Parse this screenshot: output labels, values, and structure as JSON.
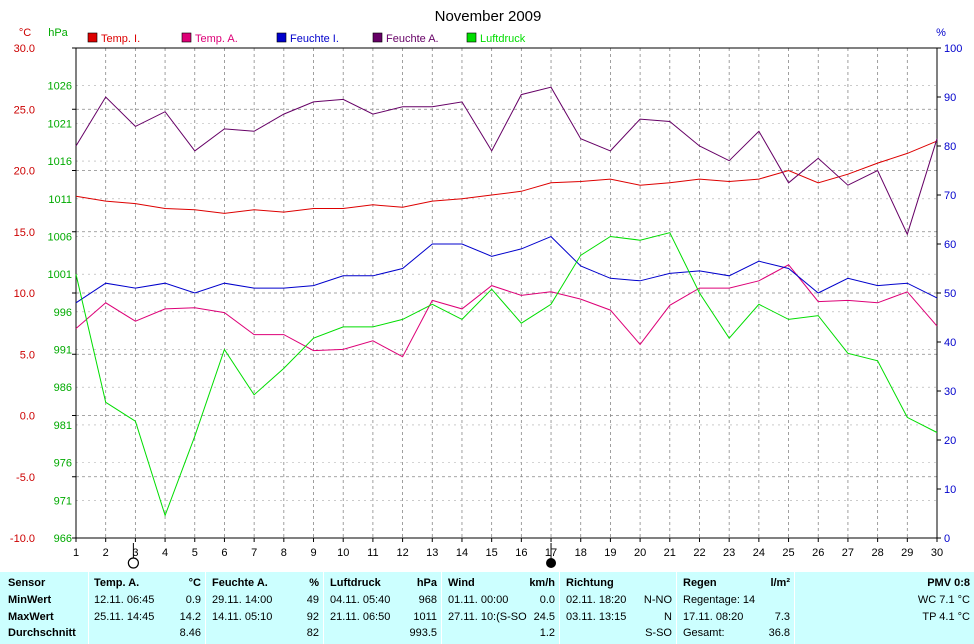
{
  "chart_data": {
    "type": "line",
    "title": "November 2009",
    "left_axis_unit": "°C",
    "pressure_axis_unit": "hPa",
    "right_axis_unit": "%",
    "x": [
      1,
      2,
      3,
      4,
      5,
      6,
      7,
      8,
      9,
      10,
      11,
      12,
      13,
      14,
      15,
      16,
      17,
      18,
      19,
      20,
      21,
      22,
      23,
      24,
      25,
      26,
      27,
      28,
      29,
      30
    ],
    "x_ticks": [
      "1",
      "2",
      "3",
      "4",
      "5",
      "6",
      "7",
      "8",
      "9",
      "10",
      "11",
      "12",
      "13",
      "14",
      "15",
      "16",
      "17",
      "18",
      "19",
      "20",
      "21",
      "22",
      "23",
      "24",
      "25",
      "26",
      "27",
      "28",
      "29",
      "30"
    ],
    "temp_axis": {
      "ylim": [
        -10,
        30
      ],
      "ticks": [
        "30.0",
        "25.0",
        "20.0",
        "15.0",
        "10.0",
        "5.0",
        "0.0",
        "-5.0",
        "-10.0"
      ]
    },
    "pressure_axis": {
      "ylim": [
        966,
        1031
      ],
      "ticks": [
        "1026",
        "1021",
        "1016",
        "1011",
        "1006",
        "1001",
        "996",
        "991",
        "986",
        "981",
        "976",
        "971",
        "966"
      ]
    },
    "humidity_axis": {
      "ylim": [
        0,
        100
      ],
      "ticks": [
        "100",
        "90",
        "80",
        "70",
        "60",
        "50",
        "40",
        "30",
        "20",
        "10",
        "0"
      ]
    },
    "series": [
      {
        "name": "Temp. I.",
        "axis": "temp",
        "color": "#dd0000",
        "values": [
          17.9,
          17.5,
          17.3,
          16.9,
          16.8,
          16.5,
          16.8,
          16.6,
          16.9,
          16.9,
          17.2,
          17.0,
          17.5,
          17.7,
          18.0,
          18.3,
          19.0,
          19.1,
          19.3,
          18.8,
          19.0,
          19.3,
          19.1,
          19.3,
          20.0,
          19.0,
          19.7,
          20.6,
          21.4,
          22.4
        ]
      },
      {
        "name": "Temp. A.",
        "axis": "temp",
        "color": "#dd0077",
        "values": [
          7.1,
          9.2,
          7.7,
          8.7,
          8.8,
          8.4,
          6.6,
          6.6,
          5.3,
          5.4,
          6.1,
          4.8,
          9.4,
          8.7,
          10.6,
          9.8,
          10.1,
          9.5,
          8.6,
          5.8,
          9.0,
          10.4,
          10.4,
          11.0,
          12.3,
          9.3,
          9.4,
          9.2,
          10.1,
          7.3
        ]
      },
      {
        "name": "Feuchte I.",
        "axis": "humidity",
        "color": "#0000cc",
        "values": [
          48,
          52,
          51,
          52,
          50,
          52,
          51,
          51,
          51.5,
          53.5,
          53.5,
          55,
          60,
          60,
          57.5,
          59,
          61.5,
          55.5,
          53,
          52.5,
          54,
          54.5,
          53.5,
          56.5,
          55,
          50,
          53,
          51.5,
          52,
          49
        ]
      },
      {
        "name": "Feuchte A.",
        "axis": "humidity",
        "color": "#660066",
        "values": [
          80,
          90,
          84,
          87,
          79,
          83.5,
          83,
          86.5,
          89,
          89.5,
          86.5,
          88,
          88,
          89,
          79,
          90.5,
          92,
          81.5,
          79,
          85.5,
          85,
          80,
          77,
          83,
          72.5,
          77.5,
          72,
          75,
          62,
          81.5
        ]
      },
      {
        "name": "Luftdruck",
        "axis": "pressure",
        "color": "#00dd00",
        "values": [
          1001,
          984,
          981.5,
          969,
          979.5,
          991,
          985,
          988.5,
          992.5,
          994,
          994,
          995,
          997,
          995,
          999,
          994.5,
          997,
          1003.5,
          1006,
          1005.5,
          1006.5,
          998.5,
          992.5,
          997,
          995,
          995.5,
          990.5,
          989.5,
          982,
          980
        ]
      }
    ],
    "grid": true,
    "legend_position": "top"
  },
  "markers": {
    "min_day": 3,
    "max_day": 17
  },
  "stats": {
    "sensor": {
      "header": "Sensor",
      "rows": [
        "MinWert",
        "MaxWert",
        "Durchschnitt"
      ]
    },
    "temp": {
      "header": "Temp. A.",
      "unit": "°C",
      "rows": [
        {
          "time": "12.11.  06:45",
          "value": "0.9"
        },
        {
          "time": "25.11.  14:45",
          "value": "14.2"
        },
        {
          "time": "",
          "value": "8.46"
        }
      ]
    },
    "feuchte": {
      "header": "Feuchte A.",
      "unit": "%",
      "rows": [
        {
          "time": "29.11.  14:00",
          "value": "49"
        },
        {
          "time": "14.11.  05:10",
          "value": "92"
        },
        {
          "time": "",
          "value": "82"
        }
      ]
    },
    "luftdruck": {
      "header": "Luftdruck",
      "unit": "hPa",
      "rows": [
        {
          "time": "04.11.  05:40",
          "value": "968"
        },
        {
          "time": "21.11.  06:50",
          "value": "1011"
        },
        {
          "time": "",
          "value": "993.5"
        }
      ]
    },
    "wind": {
      "header": "Wind",
      "unit": "km/h",
      "rows": [
        {
          "time": "01.11.  00:00",
          "dir": "",
          "value": "0.0"
        },
        {
          "time": "27.11.  10:(S-SO",
          "dir": "",
          "value": "24.5"
        },
        {
          "time": "",
          "dir": "",
          "value": "1.2"
        }
      ]
    },
    "richtung": {
      "header": "Richtung",
      "rows": [
        {
          "time": "02.11.  18:20",
          "value": "N-NO"
        },
        {
          "time": "03.11.  13:15",
          "value": "N"
        },
        {
          "time": "",
          "value": "S-SO"
        }
      ]
    },
    "regen": {
      "header": "Regen",
      "unit": "l/m²",
      "rows": [
        {
          "label": "Regentage: 14",
          "value": ""
        },
        {
          "label": "17.11.  08:20",
          "value": "7.3"
        },
        {
          "label": "Gesamt:",
          "value": "36.8"
        }
      ]
    },
    "pmv": {
      "header": "PMV 0:8",
      "rows": [
        "WC 7.1 °C",
        "TP 4.1 °C"
      ]
    }
  }
}
